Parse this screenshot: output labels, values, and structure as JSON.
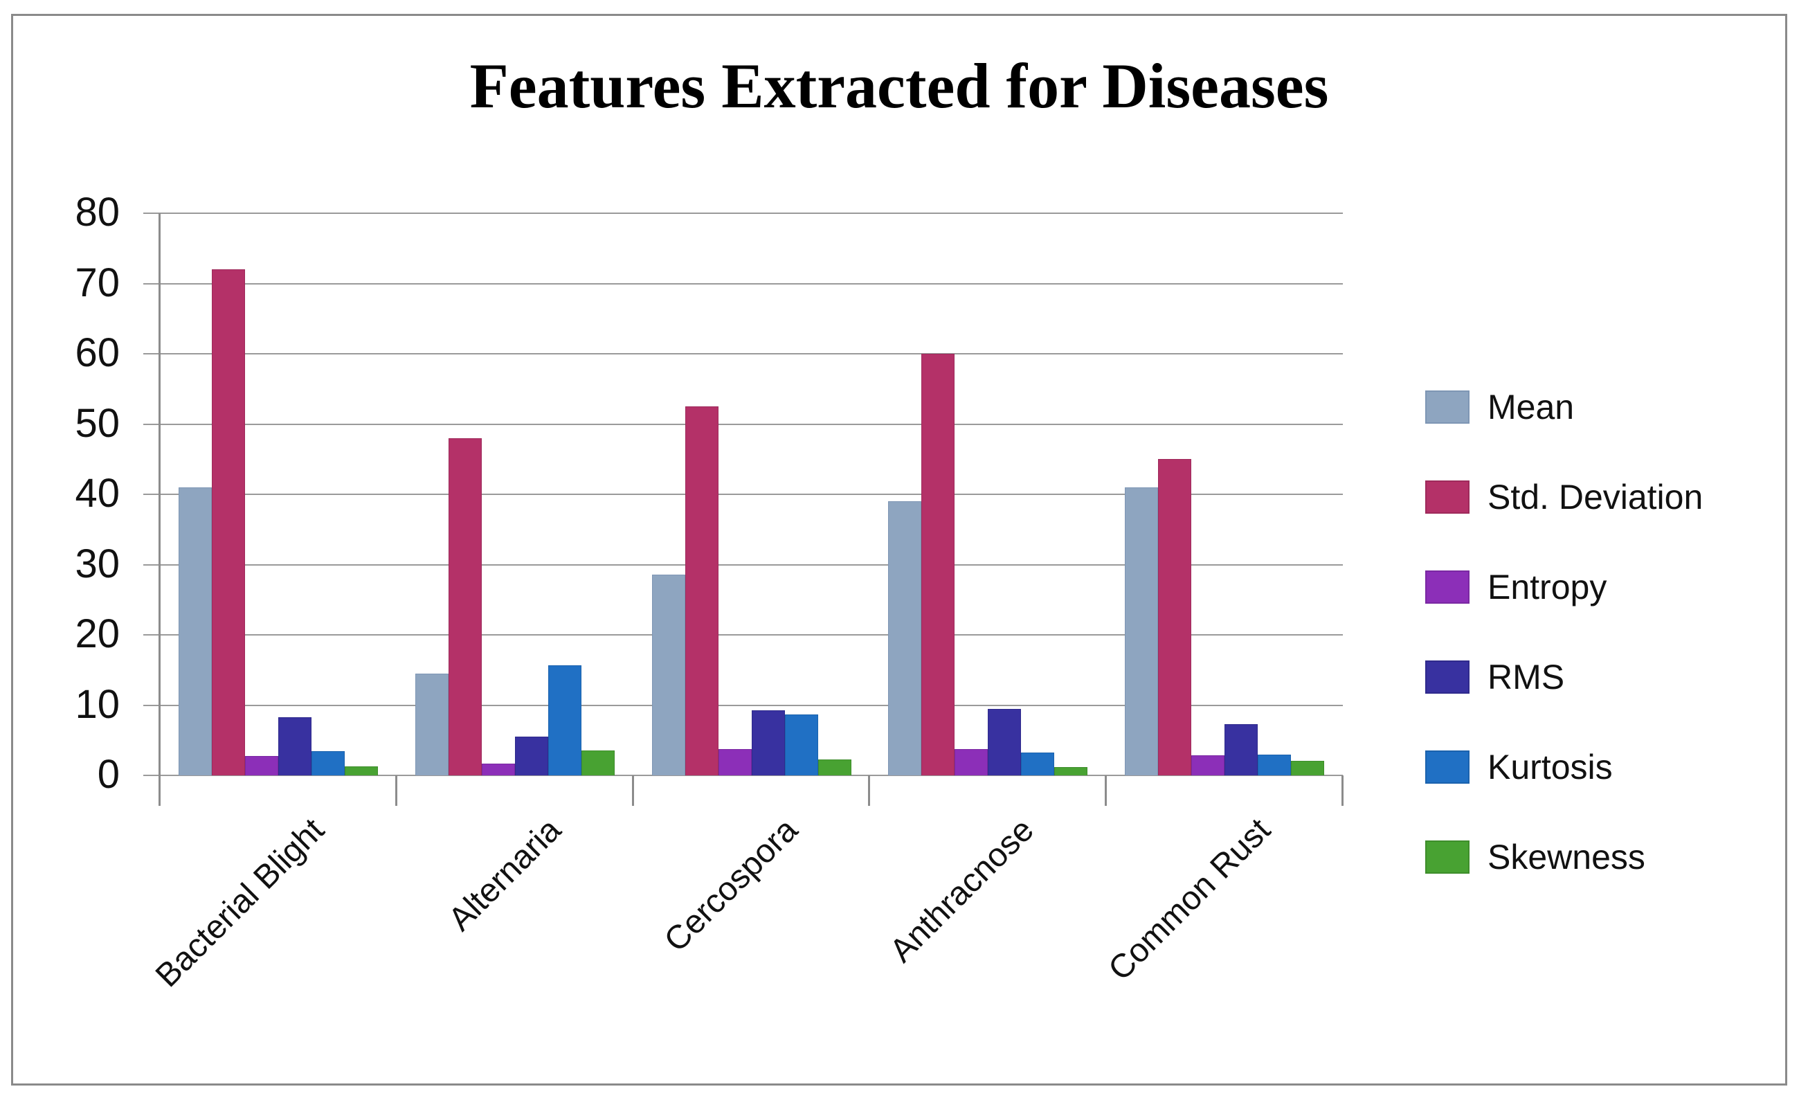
{
  "title": "Features Extracted for Diseases",
  "chart_data": {
    "type": "bar",
    "title": "Features Extracted for Diseases",
    "categories": [
      "Bacterial Blight",
      "Alternaria",
      "Cercospora",
      "Anthracnose",
      "Common Rust"
    ],
    "series": [
      {
        "name": "Mean",
        "color": "#8EA5C0",
        "border": "#7E96B4",
        "values": [
          41,
          14.5,
          28.6,
          39,
          41
        ]
      },
      {
        "name": "Std. Deviation",
        "color": "#B43168",
        "border": "#9E2A5B",
        "values": [
          72,
          48,
          52.5,
          60,
          45
        ]
      },
      {
        "name": "Entropy",
        "color": "#8C2FB8",
        "border": "#7A28A2",
        "values": [
          2.8,
          1.7,
          3.7,
          3.7,
          2.9
        ]
      },
      {
        "name": "RMS",
        "color": "#3831A0",
        "border": "#2F2A8C",
        "values": [
          8.3,
          5.5,
          9.3,
          9.5,
          7.3
        ]
      },
      {
        "name": "Kurtosis",
        "color": "#2070C4",
        "border": "#1B62AD",
        "values": [
          3.4,
          15.7,
          8.7,
          3.3,
          3.0
        ]
      },
      {
        "name": "Skewness",
        "color": "#48A232",
        "border": "#3E8D2B",
        "values": [
          1.3,
          3.5,
          2.3,
          1.2,
          2.1
        ]
      }
    ],
    "ylim": [
      0,
      80
    ],
    "yticks": [
      0,
      10,
      20,
      30,
      40,
      50,
      60,
      70,
      80
    ],
    "xlabel": "",
    "ylabel": "",
    "grid": true,
    "legend_position": "right"
  }
}
